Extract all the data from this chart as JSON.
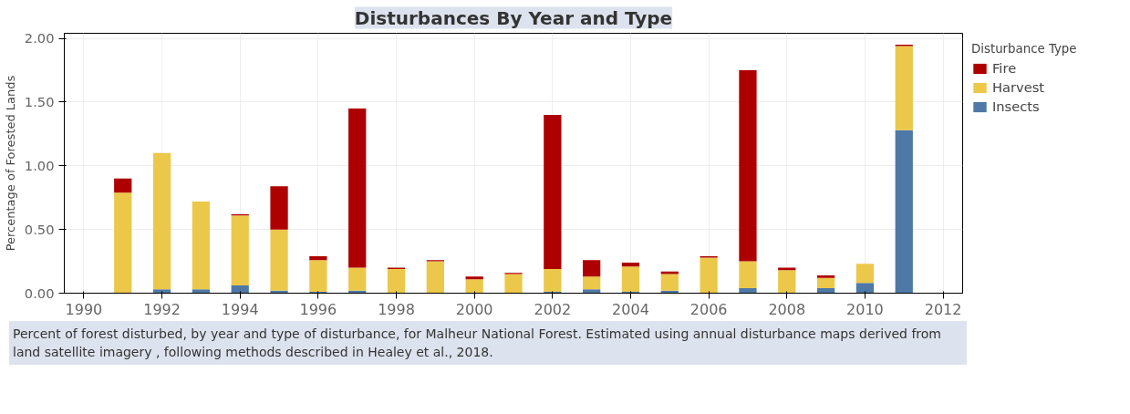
{
  "chart_data": {
    "type": "bar",
    "stacked": true,
    "title": "Disturbances By Year and Type",
    "ylabel": "Percentage of Forested Lands",
    "legend_title": "Disturbance Type",
    "legend": "top right",
    "x": [
      1991,
      1992,
      1993,
      1994,
      1995,
      1996,
      1997,
      1998,
      1999,
      2000,
      2001,
      2002,
      2003,
      2004,
      2005,
      2006,
      2007,
      2008,
      2009,
      2010,
      2011
    ],
    "series": [
      {
        "name": "Insects",
        "color": "#4e79a7",
        "values": [
          0,
          0.03,
          0.03,
          0.06,
          0.02,
          0.01,
          0.02,
          0,
          0,
          0,
          0,
          0.01,
          0.03,
          0.01,
          0.02,
          0,
          0.04,
          0,
          0.04,
          0.08,
          1.28
        ]
      },
      {
        "name": "Harvest",
        "color": "#ecc84a",
        "values": [
          0.79,
          1.07,
          0.69,
          0.55,
          0.48,
          0.25,
          0.18,
          0.19,
          0.25,
          0.11,
          0.15,
          0.18,
          0.1,
          0.2,
          0.13,
          0.28,
          0.21,
          0.18,
          0.08,
          0.15,
          0.66
        ]
      },
      {
        "name": "Fire",
        "color": "#ae0000",
        "values": [
          0.11,
          0,
          0,
          0.01,
          0.34,
          0.03,
          1.25,
          0.01,
          0.01,
          0.02,
          0.01,
          1.21,
          0.13,
          0.03,
          0.02,
          0.01,
          1.5,
          0.02,
          0.02,
          0,
          0.01
        ]
      }
    ],
    "xlim": [
      1989.5,
      2012.5
    ],
    "xticks": [
      1990,
      1992,
      1994,
      1996,
      1998,
      2000,
      2002,
      2004,
      2006,
      2008,
      2010,
      2012
    ],
    "ylim": [
      0,
      2.04
    ],
    "yticks": [
      {
        "value": 0,
        "label": "0.00"
      },
      {
        "value": 0.5,
        "label": "0.50"
      },
      {
        "value": 1,
        "label": "1.00"
      },
      {
        "value": 1.5,
        "label": "1.50"
      },
      {
        "value": 2,
        "label": "2.00"
      }
    ],
    "grid": true,
    "annotations": [
      "Percent of forest disturbed, by year and type of disturbance, for Malheur National Forest. Estimated using annual disturbance maps derived from land satellite imagery , following methods described in Healey et al., 2018."
    ]
  }
}
